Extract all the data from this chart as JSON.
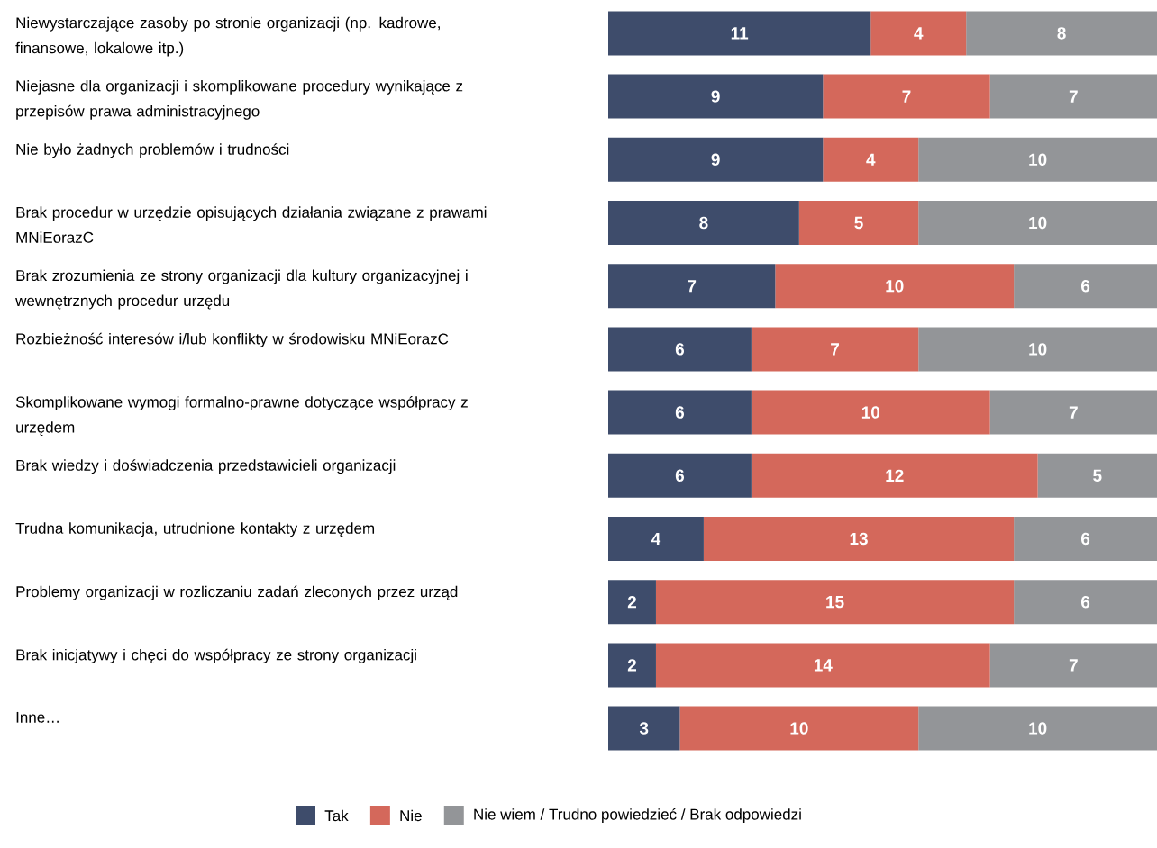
{
  "chart_data": {
    "type": "bar",
    "orientation": "horizontal",
    "stacked": true,
    "data_labels": true,
    "legend": "bottom",
    "xlim": [
      0,
      23
    ],
    "tick_labels": "y",
    "categories": [
      "Niewystarczające zasoby po stronie organizacji (np. kadrowe, finansowe, lokalowe itp.)",
      "Niejasne dla organizacji i skomplikowane procedury wynikające z przepisów prawa administracyjnego",
      "Nie było żadnych problemów i trudności",
      "Brak procedur w urzędzie opisujących działania związane z prawami MNiEorazC",
      "Brak zrozumienia ze strony organizacji dla kultury organizacyjnej i wewnętrznych procedur urzędu",
      "Rozbieżność interesów i/lub konflikty w środowisku MNiEorazC",
      "Skomplikowane wymogi formalno-prawne dotyczące współpracy z urzędem",
      "Brak wiedzy i doświadczenia przedstawicieli organizacji",
      "Trudna komunikacja, utrudnione kontakty z urzędem",
      "Problemy organizacji w rozliczaniu zadań zleconych przez urząd",
      "Brak inicjatywy i chęci do współpracy ze strony organizacji",
      "Inne…"
    ],
    "series": [
      {
        "name": "Tak",
        "color": "#3e4c6b",
        "values": [
          11,
          9,
          9,
          8,
          7,
          6,
          6,
          6,
          4,
          2,
          2,
          3
        ]
      },
      {
        "name": "Nie",
        "color": "#d4685b",
        "values": [
          4,
          7,
          4,
          5,
          10,
          7,
          10,
          12,
          13,
          15,
          14,
          10
        ]
      },
      {
        "name": "Nie wiem / Trudno powiedzieć / Brak odpowiedzi",
        "color": "#939598",
        "values": [
          8,
          7,
          10,
          10,
          6,
          10,
          7,
          5,
          6,
          6,
          7,
          10
        ]
      }
    ]
  }
}
